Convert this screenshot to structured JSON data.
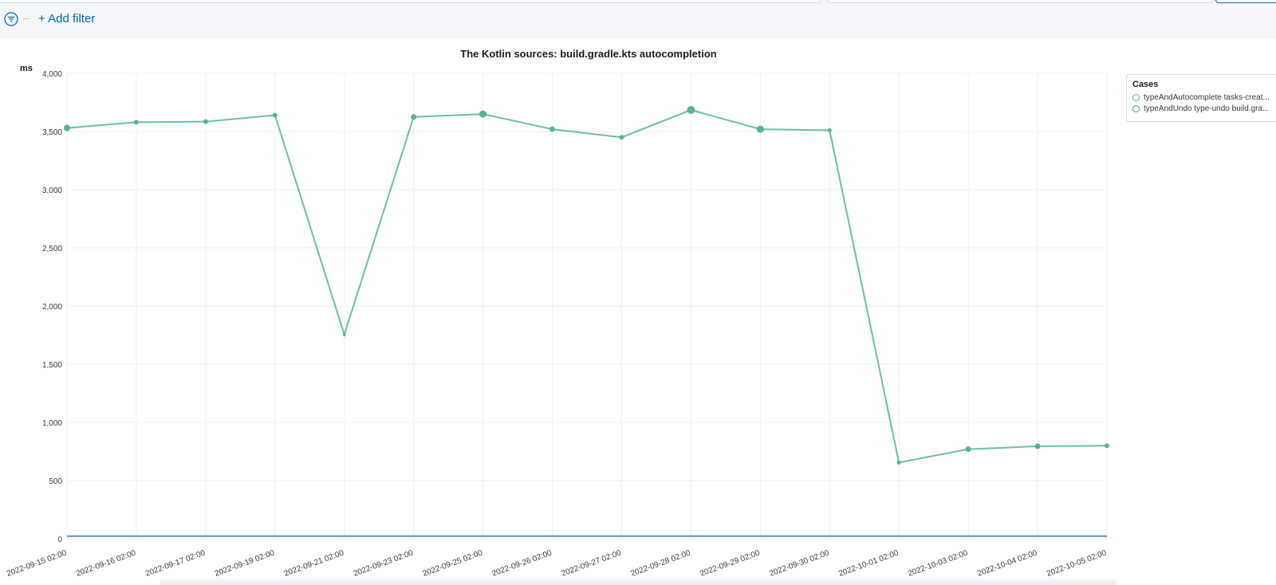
{
  "filter_bar": {
    "add_filter_label": "+ Add filter",
    "filter_icon": "filter-menu-icon"
  },
  "colors": {
    "accent": "#006bb4",
    "series1": "#54b399",
    "series2": "#6092c0",
    "grid": "#eef0f3"
  },
  "chart_data": {
    "type": "line",
    "title": "The Kotlin sources: build.gradle.kts autocompletion",
    "ylabel": "ms",
    "xlabel": "",
    "ylim": [
      0,
      4000
    ],
    "y_ticks": [
      0,
      500,
      1000,
      1500,
      2000,
      2500,
      3000,
      3500,
      4000
    ],
    "y_tick_labels": [
      "0",
      "500",
      "1,000",
      "1,500",
      "2,000",
      "2,500",
      "3,000",
      "3,500",
      "4,000"
    ],
    "categories": [
      "2022-09-15 02:00",
      "2022-09-16 02:00",
      "2022-09-17 02:00",
      "2022-09-19 02:00",
      "2022-09-21 02:00",
      "2022-09-23 02:00",
      "2022-09-25 02:00",
      "2022-09-26 02:00",
      "2022-09-27 02:00",
      "2022-09-28 02:00",
      "2022-09-29 02:00",
      "2022-09-30 02:00",
      "2022-10-01 02:00",
      "2022-10-03 02:00",
      "2022-10-04 02:00",
      "2022-10-05 02:00"
    ],
    "legend_title": "Cases",
    "legend_position": "right",
    "grid": true,
    "series": [
      {
        "name": "typeAndAutocomplete tasks-creat...",
        "color": "#54b399",
        "values": [
          3530,
          3580,
          3585,
          3640,
          1755,
          3625,
          3650,
          3520,
          3450,
          3685,
          3520,
          3510,
          655,
          770,
          795,
          800
        ],
        "marker_sizes": [
          4,
          3,
          3,
          3,
          2,
          3.5,
          4.5,
          3.5,
          3,
          5,
          4.5,
          2.5,
          2.5,
          3.5,
          3.5,
          3
        ]
      },
      {
        "name": "typeAndUndo type-undo build.gra...",
        "color": "#6092c0",
        "values": [
          22,
          22,
          22,
          22,
          22,
          22,
          22,
          22,
          22,
          22,
          22,
          22,
          22,
          22,
          22,
          22
        ],
        "marker_sizes": []
      }
    ]
  }
}
